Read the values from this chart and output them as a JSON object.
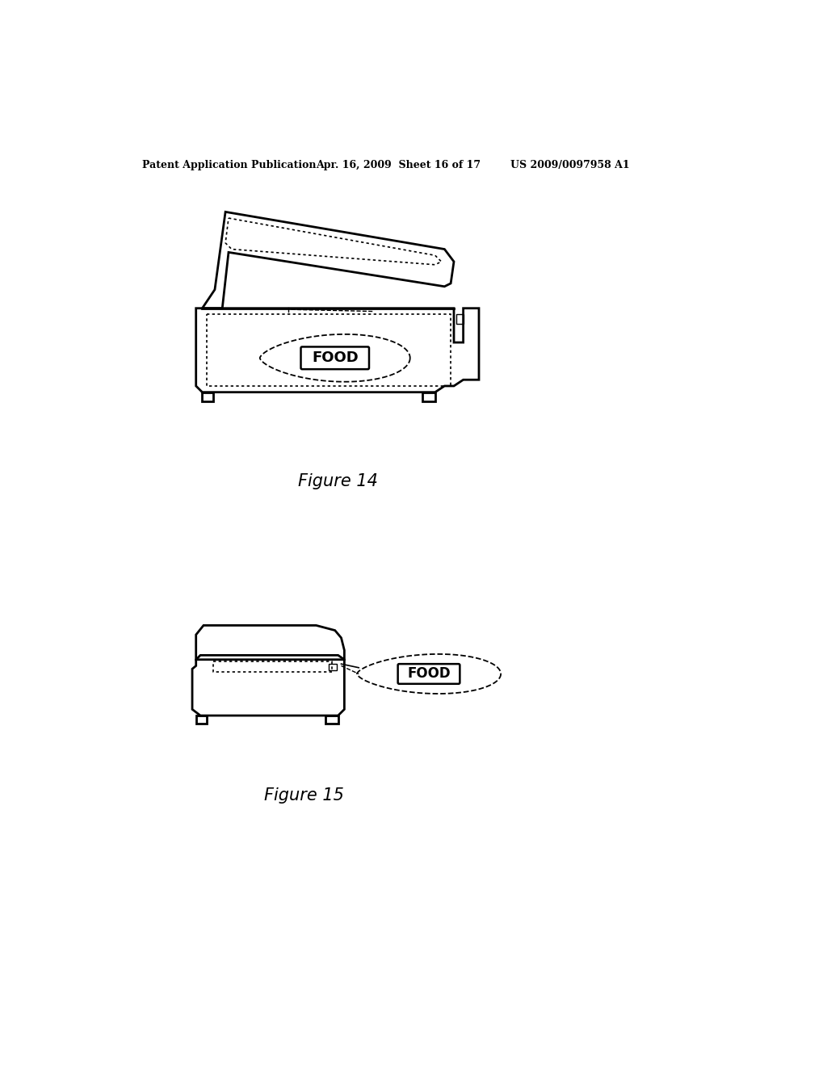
{
  "background_color": "#ffffff",
  "header_left": "Patent Application Publication",
  "header_mid": "Apr. 16, 2009  Sheet 16 of 17",
  "header_right": "US 2009/0097958 A1",
  "fig14_caption": "Figure 14",
  "fig15_caption": "Figure 15",
  "line_color": "#000000"
}
